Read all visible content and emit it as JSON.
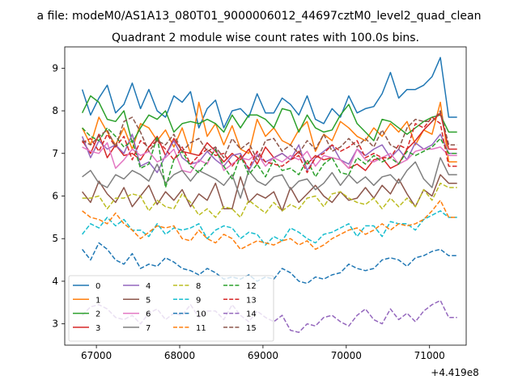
{
  "figure": {
    "suptitle": "a file: modeM0/AS1A13_080T01_9000006012_44697cztM0_level2_quad_clean",
    "title": "Quadrant 2 module wise count rates with 100.0s bins.",
    "x_offset_label": "+4.419e8"
  },
  "chart_data": {
    "type": "line",
    "title": "Quadrant 2 module wise count rates with 100.0s bins.",
    "xlabel": "",
    "ylabel": "",
    "x_offset": 441900000,
    "xlim": [
      66620,
      71440
    ],
    "ylim": [
      2.5,
      9.5
    ],
    "xticks": [
      67000,
      68000,
      69000,
      70000,
      71000
    ],
    "xtick_labels": [
      "67000",
      "68000",
      "69000",
      "70000",
      "71000"
    ],
    "yticks": [
      3,
      4,
      5,
      6,
      7,
      8,
      9
    ],
    "ytick_labels": [
      "3",
      "4",
      "5",
      "6",
      "7",
      "8",
      "9"
    ],
    "grid": false,
    "legend": {
      "position": "lower-left",
      "ncol": 4
    },
    "x_start": 66830,
    "x_step": 100,
    "n_points": 46,
    "series": [
      {
        "name": "0",
        "color": "#1f77b4",
        "dash": "solid",
        "values": [
          8.5,
          7.9,
          8.3,
          8.6,
          7.95,
          8.15,
          8.65,
          8.05,
          8.5,
          8.0,
          7.85,
          8.35,
          8.2,
          8.45,
          7.6,
          8.05,
          8.25,
          7.6,
          8.0,
          8.05,
          7.85,
          8.4,
          7.95,
          7.95,
          8.3,
          8.15,
          7.9,
          8.35,
          7.8,
          7.7,
          8.05,
          7.85,
          8.35,
          7.95,
          8.05,
          8.1,
          8.4,
          8.9,
          8.3,
          8.5,
          8.5,
          8.6,
          8.8,
          9.25,
          7.85,
          7.85
        ]
      },
      {
        "name": "1",
        "color": "#ff7f0e",
        "dash": "solid",
        "values": [
          7.6,
          7.2,
          7.85,
          7.5,
          7.2,
          7.6,
          7.1,
          7.7,
          7.6,
          7.3,
          7.55,
          7.15,
          7.6,
          7.0,
          8.2,
          7.4,
          7.7,
          7.2,
          7.65,
          7.1,
          7.0,
          7.8,
          7.4,
          7.6,
          7.3,
          7.2,
          7.55,
          7.75,
          7.05,
          7.45,
          7.3,
          7.75,
          7.6,
          7.4,
          7.3,
          7.6,
          7.4,
          7.7,
          7.5,
          7.75,
          7.2,
          7.55,
          7.45,
          8.2,
          6.8,
          6.8
        ]
      },
      {
        "name": "2",
        "color": "#2ca02c",
        "dash": "solid",
        "values": [
          7.95,
          8.35,
          8.2,
          7.8,
          7.75,
          8.0,
          7.25,
          7.6,
          7.9,
          7.8,
          8.0,
          7.5,
          7.7,
          7.75,
          7.7,
          7.8,
          7.7,
          7.5,
          7.9,
          7.6,
          7.9,
          7.9,
          7.8,
          7.6,
          8.05,
          8.0,
          7.5,
          7.9,
          7.6,
          7.5,
          7.55,
          7.9,
          8.15,
          7.7,
          7.5,
          7.3,
          7.8,
          7.75,
          7.6,
          7.45,
          7.6,
          7.75,
          7.85,
          7.9,
          7.5,
          7.5
        ]
      },
      {
        "name": "3",
        "color": "#d62728",
        "dash": "solid",
        "values": [
          7.3,
          7.0,
          7.45,
          6.9,
          7.2,
          6.95,
          7.0,
          6.85,
          7.15,
          7.4,
          6.95,
          7.35,
          7.05,
          7.0,
          6.95,
          7.25,
          7.05,
          6.8,
          7.0,
          6.85,
          7.1,
          6.75,
          7.15,
          6.9,
          7.0,
          6.85,
          7.05,
          6.75,
          6.95,
          6.85,
          6.9,
          6.85,
          6.65,
          6.75,
          6.6,
          6.85,
          6.9,
          6.65,
          6.75,
          7.1,
          7.3,
          7.55,
          7.75,
          7.95,
          7.1,
          7.1
        ]
      },
      {
        "name": "4",
        "color": "#9467bd",
        "dash": "solid",
        "values": [
          7.4,
          6.9,
          7.3,
          7.1,
          7.2,
          7.0,
          7.45,
          6.7,
          6.8,
          6.55,
          6.95,
          7.3,
          6.9,
          6.75,
          6.8,
          7.05,
          6.85,
          6.7,
          6.95,
          7.0,
          6.6,
          6.95,
          6.8,
          6.9,
          7.0,
          6.85,
          7.2,
          6.6,
          6.9,
          7.05,
          7.2,
          6.85,
          6.75,
          7.1,
          6.95,
          7.1,
          7.2,
          6.9,
          7.1,
          6.85,
          7.25,
          7.1,
          7.2,
          7.45,
          7.0,
          7.0
        ]
      },
      {
        "name": "5",
        "color": "#8c564b",
        "dash": "solid",
        "values": [
          6.1,
          5.85,
          6.35,
          6.05,
          5.85,
          6.2,
          5.75,
          6.0,
          6.25,
          5.8,
          6.1,
          5.9,
          6.15,
          5.75,
          6.05,
          5.9,
          6.3,
          5.7,
          5.7,
          6.45,
          5.85,
          6.05,
          5.95,
          6.1,
          5.65,
          6.2,
          5.85,
          6.05,
          6.25,
          6.0,
          5.85,
          6.1,
          5.9,
          5.95,
          6.2,
          5.95,
          6.25,
          6.05,
          6.4,
          6.05,
          5.75,
          6.15,
          6.0,
          6.5,
          6.3,
          6.3
        ]
      },
      {
        "name": "6",
        "color": "#e377c2",
        "dash": "solid",
        "values": [
          7.15,
          7.05,
          7.0,
          7.25,
          6.65,
          6.85,
          7.1,
          6.95,
          7.05,
          6.8,
          6.9,
          7.1,
          6.6,
          6.55,
          6.85,
          6.75,
          7.15,
          6.6,
          6.75,
          6.9,
          6.85,
          7.0,
          6.7,
          6.9,
          6.8,
          6.95,
          6.85,
          7.05,
          6.7,
          6.95,
          6.9,
          6.85,
          6.65,
          7.1,
          6.85,
          6.8,
          6.9,
          7.0,
          6.75,
          6.85,
          7.05,
          7.1,
          7.1,
          7.15,
          6.95,
          6.95
        ]
      },
      {
        "name": "7",
        "color": "#7f7f7f",
        "dash": "solid",
        "values": [
          6.45,
          6.6,
          6.3,
          6.2,
          6.5,
          6.4,
          6.6,
          6.5,
          6.35,
          6.75,
          6.3,
          6.5,
          6.6,
          6.35,
          6.6,
          6.5,
          6.4,
          6.25,
          6.5,
          5.95,
          6.6,
          6.35,
          6.25,
          6.45,
          6.5,
          6.15,
          6.35,
          6.4,
          6.15,
          6.3,
          6.55,
          6.25,
          6.5,
          6.3,
          6.45,
          6.25,
          6.45,
          6.5,
          6.3,
          6.6,
          6.8,
          6.4,
          6.2,
          6.9,
          6.5,
          6.5
        ]
      },
      {
        "name": "8",
        "color": "#bcbd22",
        "dash": "dashed",
        "values": [
          5.95,
          5.95,
          6.0,
          5.7,
          5.95,
          5.95,
          6.05,
          6.0,
          5.65,
          5.9,
          5.75,
          5.7,
          6.05,
          5.85,
          5.55,
          5.7,
          5.5,
          5.75,
          5.7,
          5.5,
          5.9,
          5.75,
          5.6,
          5.85,
          5.65,
          5.8,
          5.7,
          5.95,
          6.0,
          5.75,
          6.05,
          6.1,
          5.95,
          5.85,
          5.8,
          5.95,
          5.7,
          5.95,
          5.75,
          5.95,
          5.75,
          6.15,
          5.9,
          6.3,
          6.2,
          6.2
        ]
      },
      {
        "name": "9",
        "color": "#17becf",
        "dash": "dashed",
        "values": [
          5.1,
          5.35,
          5.25,
          5.5,
          5.3,
          5.45,
          5.2,
          5.2,
          5.05,
          5.35,
          5.1,
          5.25,
          5.2,
          5.25,
          5.35,
          5.0,
          5.2,
          5.3,
          5.25,
          5.0,
          5.15,
          5.1,
          4.85,
          5.05,
          4.95,
          5.25,
          5.15,
          5.0,
          4.9,
          5.1,
          5.15,
          5.25,
          5.35,
          5.05,
          5.3,
          5.3,
          5.05,
          5.4,
          5.35,
          5.35,
          5.2,
          5.45,
          5.55,
          5.65,
          5.5,
          5.5
        ]
      },
      {
        "name": "10",
        "color": "#1f77b4",
        "dash": "dashed",
        "values": [
          4.75,
          4.5,
          4.9,
          4.75,
          4.5,
          4.4,
          4.65,
          4.3,
          4.4,
          4.35,
          4.55,
          4.45,
          4.3,
          4.25,
          4.15,
          4.3,
          4.2,
          4.05,
          4.1,
          4.05,
          4.15,
          4.0,
          4.1,
          4.05,
          4.3,
          4.2,
          4.0,
          3.95,
          4.1,
          4.05,
          4.15,
          4.2,
          4.4,
          4.3,
          4.25,
          4.3,
          4.5,
          4.55,
          4.5,
          4.35,
          4.55,
          4.6,
          4.7,
          4.75,
          4.6,
          4.6
        ]
      },
      {
        "name": "11",
        "color": "#ff7f0e",
        "dash": "dashed",
        "values": [
          5.65,
          5.5,
          5.45,
          5.35,
          5.6,
          5.35,
          5.2,
          5.0,
          5.15,
          5.3,
          5.25,
          5.3,
          5.0,
          4.95,
          5.2,
          5.0,
          4.9,
          5.1,
          5.0,
          4.75,
          4.85,
          4.95,
          4.9,
          4.85,
          4.95,
          5.0,
          4.85,
          4.95,
          4.75,
          4.85,
          5.0,
          5.1,
          5.2,
          5.25,
          5.1,
          5.2,
          5.35,
          5.2,
          5.35,
          5.3,
          5.35,
          5.45,
          5.65,
          5.9,
          5.5,
          5.5
        ]
      },
      {
        "name": "12",
        "color": "#2ca02c",
        "dash": "dashed",
        "values": [
          7.6,
          7.4,
          7.3,
          7.6,
          7.4,
          7.15,
          7.3,
          6.65,
          6.75,
          7.4,
          6.2,
          6.85,
          7.05,
          6.7,
          6.55,
          6.8,
          7.1,
          6.7,
          6.4,
          6.95,
          6.5,
          6.75,
          6.45,
          6.85,
          6.6,
          6.65,
          6.5,
          6.85,
          6.45,
          6.75,
          6.9,
          6.55,
          6.5,
          6.9,
          6.75,
          6.95,
          6.8,
          6.9,
          6.75,
          7.05,
          6.95,
          7.05,
          7.15,
          7.35,
          7.0,
          7.0
        ]
      },
      {
        "name": "13",
        "color": "#d62728",
        "dash": "dashed",
        "values": [
          7.25,
          7.35,
          7.05,
          7.45,
          7.15,
          7.4,
          6.85,
          7.3,
          7.15,
          7.3,
          7.1,
          6.85,
          7.15,
          6.75,
          6.95,
          7.1,
          6.95,
          7.0,
          6.7,
          6.95,
          6.65,
          7.05,
          6.8,
          6.75,
          6.7,
          6.85,
          6.95,
          6.55,
          6.9,
          7.0,
          7.2,
          7.05,
          7.15,
          7.3,
          6.9,
          7.0,
          6.9,
          6.9,
          7.2,
          7.1,
          7.7,
          7.6,
          7.85,
          7.7,
          6.7,
          6.7
        ]
      },
      {
        "name": "14",
        "color": "#9467bd",
        "dash": "dashed",
        "values": [
          3.2,
          3.4,
          3.45,
          3.35,
          3.15,
          3.1,
          3.2,
          3.0,
          3.25,
          3.35,
          3.1,
          3.25,
          3.2,
          3.45,
          3.15,
          3.3,
          3.3,
          3.1,
          3.45,
          3.2,
          3.05,
          3.3,
          3.15,
          3.05,
          3.2,
          2.85,
          2.8,
          3.0,
          2.95,
          3.15,
          3.2,
          3.05,
          2.95,
          3.2,
          3.35,
          3.1,
          3.0,
          3.35,
          3.1,
          3.25,
          3.05,
          3.3,
          3.45,
          3.55,
          3.15,
          3.15
        ]
      },
      {
        "name": "15",
        "color": "#8c564b",
        "dash": "dashed",
        "values": [
          7.3,
          7.2,
          7.4,
          7.55,
          7.15,
          7.75,
          7.85,
          7.5,
          7.05,
          7.3,
          7.2,
          7.45,
          7.05,
          7.25,
          7.35,
          7.05,
          7.15,
          6.9,
          7.35,
          7.1,
          7.25,
          6.85,
          7.3,
          7.35,
          7.05,
          7.2,
          7.0,
          7.3,
          7.1,
          7.45,
          7.05,
          7.15,
          7.35,
          7.15,
          7.35,
          7.15,
          7.55,
          7.2,
          7.1,
          7.6,
          7.8,
          7.75,
          7.75,
          8.0,
          7.2,
          7.2
        ]
      }
    ]
  }
}
